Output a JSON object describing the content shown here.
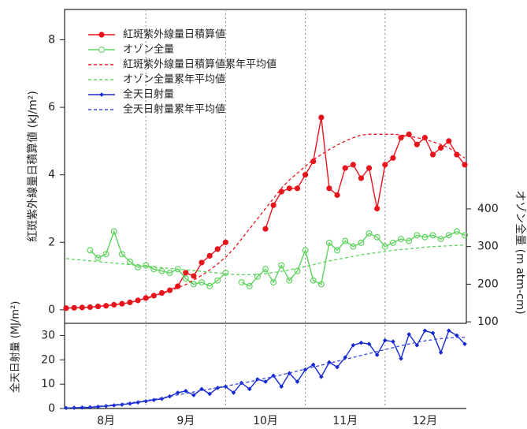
{
  "chart_data": [
    {
      "type": "line",
      "ylabel": "紅斑紫外線量日積算値 (kJ/m²)",
      "y2label": "オゾン全量 (m atm-cm)",
      "ylim": [
        -0.4,
        8.9
      ],
      "yticks": [
        0,
        2,
        4,
        6,
        8
      ],
      "y2lim": [
        96,
        930
      ],
      "y2ticks": [
        100,
        200,
        300,
        400
      ],
      "series": [
        {
          "name": "紅斑紫外線量日積算値",
          "color": "#e8141c",
          "marker": "circle",
          "dashed": false,
          "values": [
            0.05,
            0.06,
            0.07,
            0.08,
            0.1,
            0.12,
            0.15,
            0.18,
            0.22,
            0.28,
            0.35,
            0.42,
            0.5,
            0.58,
            0.7,
            1.1,
            1.0,
            1.4,
            1.6,
            1.8,
            2.0,
            null,
            null,
            null,
            null,
            2.4,
            3.1,
            3.5,
            3.6,
            3.6,
            4.0,
            4.4,
            5.7,
            3.6,
            3.4,
            4.2,
            4.3,
            3.9,
            4.2,
            3.0,
            4.3,
            4.5,
            5.1,
            5.2,
            4.9,
            5.1,
            4.6,
            4.8,
            5.0,
            4.6,
            4.3
          ]
        },
        {
          "name": "オゾン全量",
          "color": "#5ed35e",
          "marker": "open-circle",
          "dashed": false,
          "axis": "y2",
          "values": [
            null,
            null,
            null,
            290,
            270,
            280,
            340,
            280,
            260,
            245,
            250,
            240,
            235,
            230,
            240,
            215,
            200,
            205,
            195,
            210,
            230,
            null,
            205,
            195,
            220,
            240,
            205,
            250,
            210,
            235,
            290,
            210,
            200,
            310,
            290,
            315,
            300,
            310,
            335,
            325,
            300,
            310,
            320,
            315,
            330,
            325,
            330,
            320,
            330,
            340,
            330
          ]
        },
        {
          "name": "紅斑紫外線量日積算値累年平均値",
          "color": "#e8141c",
          "marker": "none",
          "dashed": true,
          "values": [
            0.05,
            0.06,
            0.07,
            0.08,
            0.1,
            0.12,
            0.15,
            0.18,
            0.22,
            0.27,
            0.33,
            0.4,
            0.48,
            0.56,
            0.65,
            0.75,
            0.88,
            1.02,
            1.18,
            1.36,
            1.56,
            1.8,
            2.1,
            2.4,
            2.7,
            3.0,
            3.3,
            3.6,
            3.85,
            4.05,
            4.25,
            4.45,
            4.6,
            4.75,
            4.88,
            5.0,
            5.1,
            5.18,
            5.2,
            5.2,
            5.2,
            5.2,
            5.18,
            5.15,
            5.1,
            5.05,
            4.98,
            4.9,
            4.8,
            4.65,
            4.5
          ]
        },
        {
          "name": "オゾン全量累年平均値",
          "color": "#5ed35e",
          "marker": "none",
          "dashed": true,
          "axis": "y2",
          "values": [
            268,
            266,
            264,
            262,
            260,
            258,
            256,
            254,
            252,
            250,
            248,
            246,
            244,
            242,
            240,
            238,
            236,
            234,
            232,
            230,
            228,
            226,
            225,
            225,
            226,
            228,
            231,
            234,
            238,
            242,
            247,
            252,
            257,
            262,
            266,
            270,
            274,
            278,
            281,
            284,
            287,
            290,
            292,
            294,
            296,
            298,
            300,
            301,
            302,
            303,
            304
          ]
        }
      ]
    },
    {
      "type": "line",
      "ylabel": "全天日射量 (MJ/m²)",
      "ylim": [
        0,
        35
      ],
      "yticks": [
        0,
        10,
        20,
        30
      ],
      "categories": [
        null,
        null,
        null,
        null,
        null,
        "8月",
        null,
        null,
        null,
        null,
        null,
        null,
        null,
        null,
        null,
        "9月",
        null,
        null,
        null,
        null,
        null,
        null,
        null,
        null,
        null,
        "10月",
        null,
        null,
        null,
        null,
        null,
        null,
        null,
        null,
        null,
        "11月",
        null,
        null,
        null,
        null,
        null,
        null,
        null,
        null,
        null,
        "12月",
        null,
        null,
        null,
        null,
        null
      ],
      "series": [
        {
          "name": "全天日射量",
          "color": "#1428d2",
          "marker": "diamond",
          "dashed": false,
          "values": [
            0.2,
            0.3,
            0.4,
            0.5,
            0.7,
            1.0,
            1.3,
            1.6,
            2.0,
            2.5,
            3.0,
            3.5,
            4.0,
            5.0,
            6.5,
            7.2,
            5.5,
            8.0,
            6.0,
            8.5,
            9.0,
            6.5,
            10.5,
            8.0,
            12.0,
            11.0,
            13.5,
            9.0,
            14.5,
            11.0,
            16,
            18,
            13,
            19,
            17,
            21,
            26,
            27,
            26.5,
            22,
            28,
            27.5,
            20.5,
            30.5,
            26,
            32,
            31,
            23,
            32,
            30,
            26.5
          ]
        },
        {
          "name": "全天日射量累年平均値",
          "color": "#3a48d8",
          "marker": "none",
          "dashed": true,
          "values": [
            0.3,
            0.4,
            0.5,
            0.7,
            0.9,
            1.2,
            1.5,
            1.9,
            2.3,
            2.8,
            3.3,
            3.8,
            4.4,
            5.0,
            5.6,
            6.2,
            6.8,
            7.4,
            8.0,
            8.6,
            9.2,
            9.8,
            10.4,
            11.0,
            11.7,
            12.4,
            13.1,
            13.8,
            14.6,
            15.4,
            16.2,
            17.0,
            17.8,
            18.6,
            19.4,
            20.2,
            21.0,
            21.8,
            22.6,
            23.4,
            24.2,
            25.0,
            25.8,
            26.5,
            27.2,
            27.8,
            28.3,
            28.7,
            29.0,
            29.2,
            29.3
          ]
        }
      ]
    }
  ]
}
